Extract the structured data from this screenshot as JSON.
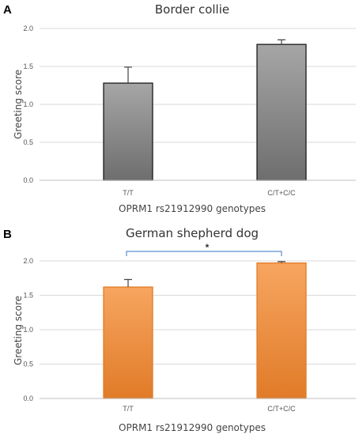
{
  "chart_data": [
    {
      "panel": "A",
      "type": "bar",
      "title": "Border collie",
      "xlabel": "OPRM1 rs21912990 genotypes",
      "ylabel": "Greeting score",
      "categories": [
        "T/T",
        "C/T+C/C"
      ],
      "values": [
        1.28,
        1.79
      ],
      "errors": [
        0.21,
        0.06
      ],
      "ylim": [
        0,
        2.0
      ],
      "yticks": [
        "0.0",
        "0.5",
        "1.0",
        "1.5",
        "2.0"
      ],
      "grid": true,
      "bar_color_top": "#a6a6a6",
      "bar_color_bottom": "#6e6e6e",
      "bar_edge": "#1a1a1a"
    },
    {
      "panel": "B",
      "type": "bar",
      "title": "German shepherd dog",
      "xlabel": "OPRM1 rs21912990 genotypes",
      "ylabel": "Greeting score",
      "categories": [
        "T/T",
        "C/T+C/C"
      ],
      "values": [
        1.62,
        1.97
      ],
      "errors": [
        0.11,
        0.02
      ],
      "ylim": [
        0,
        2.0
      ],
      "yticks": [
        "0.0",
        "0.5",
        "1.0",
        "1.5",
        "2.0"
      ],
      "grid": true,
      "bar_color_top": "#f7a560",
      "bar_color_bottom": "#e07b28",
      "bar_edge": "#e07b28",
      "significance": "*"
    }
  ]
}
